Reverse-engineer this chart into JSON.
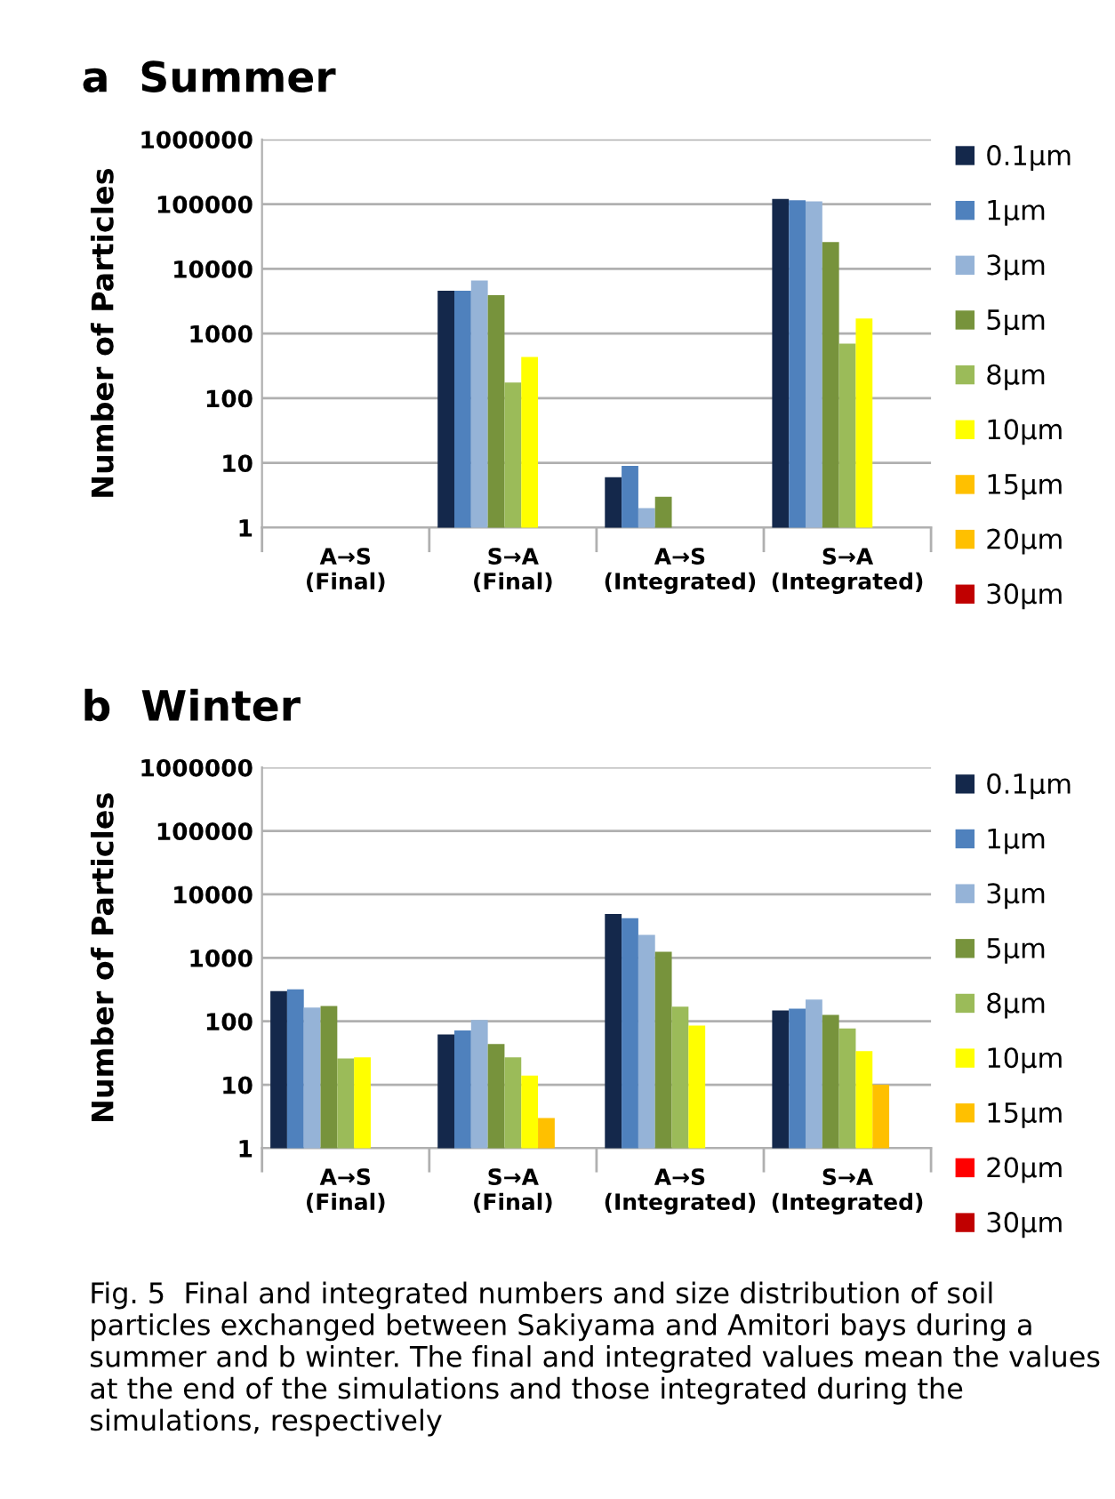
{
  "chart_data": [
    {
      "type": "bar",
      "title": "a  Summer",
      "ylabel": "Number of Particles",
      "categories": [
        "A→S\n(Final)",
        "S→A\n(Final)",
        "A→S\n(Integrated)",
        "S→A\n(Integrated)"
      ],
      "log": true,
      "ylim": [
        1,
        1000000
      ],
      "yticks": [
        1,
        10,
        100,
        1000,
        10000,
        100000,
        1000000
      ],
      "grid": "y",
      "legend": "right",
      "series": [
        {
          "name": "0.1µm",
          "color": "#14284b",
          "values": [
            null,
            4600,
            6,
            120000
          ]
        },
        {
          "name": "1µm",
          "color": "#4f81bd",
          "values": [
            null,
            4600,
            9,
            115000
          ]
        },
        {
          "name": "3µm",
          "color": "#95b3d7",
          "values": [
            null,
            6600,
            2,
            110000
          ]
        },
        {
          "name": "5µm",
          "color": "#77933c",
          "values": [
            null,
            3900,
            3,
            26000
          ]
        },
        {
          "name": "8µm",
          "color": "#9bbb59",
          "values": [
            null,
            175,
            null,
            700
          ]
        },
        {
          "name": "10µm",
          "color": "#ffff00",
          "values": [
            null,
            435,
            null,
            1700
          ]
        },
        {
          "name": "15µm",
          "color": "#ffc000",
          "values": [
            null,
            null,
            null,
            null
          ]
        },
        {
          "name": "20µm",
          "color": "#ffc000",
          "values": [
            null,
            null,
            null,
            null
          ]
        },
        {
          "name": "30µm",
          "color": "#c00000",
          "values": [
            null,
            null,
            null,
            null
          ]
        }
      ]
    },
    {
      "type": "bar",
      "title": "b  Winter",
      "ylabel": "Number of Particles",
      "categories": [
        "A→S\n(Final)",
        "S→A\n(Final)",
        "A→S\n(Integrated)",
        "S→A\n(Integrated)"
      ],
      "log": true,
      "ylim": [
        1,
        1000000
      ],
      "yticks": [
        1,
        10,
        100,
        1000,
        10000,
        100000,
        1000000
      ],
      "grid": "y",
      "legend": "right",
      "series": [
        {
          "name": "0.1µm",
          "color": "#14284b",
          "values": [
            300,
            62,
            4900,
            148
          ]
        },
        {
          "name": "1µm",
          "color": "#4f81bd",
          "values": [
            320,
            72,
            4200,
            158
          ]
        },
        {
          "name": "3µm",
          "color": "#95b3d7",
          "values": [
            165,
            105,
            2300,
            220
          ]
        },
        {
          "name": "5µm",
          "color": "#77933c",
          "values": [
            175,
            44,
            1250,
            126
          ]
        },
        {
          "name": "8µm",
          "color": "#9bbb59",
          "values": [
            26,
            27,
            170,
            77
          ]
        },
        {
          "name": "10µm",
          "color": "#ffff00",
          "values": [
            27,
            14,
            86,
            34
          ]
        },
        {
          "name": "15µm",
          "color": "#ffc000",
          "values": [
            null,
            3,
            null,
            10
          ]
        },
        {
          "name": "20µm",
          "color": "#ff0000",
          "values": [
            null,
            null,
            null,
            null
          ]
        },
        {
          "name": "30µm",
          "color": "#c00000",
          "values": [
            null,
            null,
            null,
            null
          ]
        }
      ],
      "annotations": [
        "Fig. 5  Final and integrated numbers and size distribution of soil particles exchanged between Sakiyama and Amitori bays during a summer and b winter. The final and integrated values mean the values at the end of the simulations and those integrated during the simulations, respectively"
      ]
    }
  ]
}
